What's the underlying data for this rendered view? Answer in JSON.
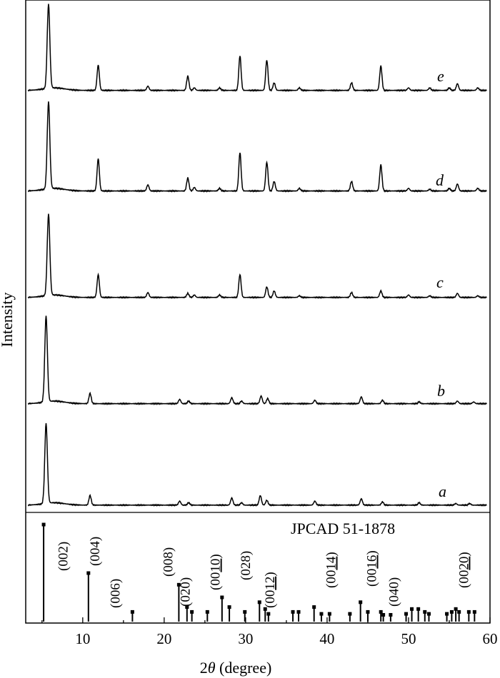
{
  "chart_data": {
    "type": "line",
    "xlabel": "2θ (degree)",
    "xlabel_parts": {
      "symbol": "2",
      "theta": "θ",
      "rest": " (degree)"
    },
    "ylabel": "Intensity",
    "xlim": [
      3,
      60
    ],
    "x_ticks": [
      10,
      20,
      30,
      40,
      50,
      60
    ],
    "y_ticks": [],
    "grid": false,
    "legend": "none",
    "series_order_bottom_to_top": [
      "a",
      "b",
      "c",
      "d",
      "e"
    ],
    "series": [
      {
        "name": "a",
        "baseline": 0.02,
        "peaks": [
          [
            5.5,
            1.0
          ],
          [
            10.9,
            0.12
          ],
          [
            21.9,
            0.05
          ],
          [
            23.0,
            0.03
          ],
          [
            28.3,
            0.09
          ],
          [
            29.5,
            0.03
          ],
          [
            31.8,
            0.12
          ],
          [
            32.6,
            0.06
          ],
          [
            38.5,
            0.05
          ],
          [
            44.2,
            0.08
          ],
          [
            46.8,
            0.04
          ],
          [
            51.3,
            0.03
          ],
          [
            55.8,
            0.02
          ],
          [
            57.5,
            0.02
          ]
        ]
      },
      {
        "name": "b",
        "baseline": 0.02,
        "peaks": [
          [
            5.5,
            1.0
          ],
          [
            10.9,
            0.12
          ],
          [
            21.9,
            0.05
          ],
          [
            23.0,
            0.03
          ],
          [
            28.3,
            0.07
          ],
          [
            29.5,
            0.03
          ],
          [
            31.9,
            0.09
          ],
          [
            32.7,
            0.06
          ],
          [
            38.5,
            0.04
          ],
          [
            44.2,
            0.08
          ],
          [
            46.8,
            0.04
          ],
          [
            51.3,
            0.02
          ],
          [
            56.0,
            0.03
          ],
          [
            58.0,
            0.02
          ]
        ]
      },
      {
        "name": "c",
        "baseline": 0.02,
        "peaks": [
          [
            5.8,
            1.0
          ],
          [
            11.9,
            0.28
          ],
          [
            18.0,
            0.06
          ],
          [
            22.9,
            0.05
          ],
          [
            23.7,
            0.03
          ],
          [
            26.8,
            0.03
          ],
          [
            29.3,
            0.28
          ],
          [
            32.6,
            0.13
          ],
          [
            33.5,
            0.08
          ],
          [
            36.6,
            0.02
          ],
          [
            43.0,
            0.06
          ],
          [
            46.6,
            0.08
          ],
          [
            50.0,
            0.03
          ],
          [
            52.6,
            0.02
          ],
          [
            56.0,
            0.05
          ],
          [
            58.5,
            0.02
          ]
        ]
      },
      {
        "name": "d",
        "baseline": 0.02,
        "peaks": [
          [
            5.8,
            1.0
          ],
          [
            11.9,
            0.37
          ],
          [
            18.0,
            0.07
          ],
          [
            22.9,
            0.15
          ],
          [
            23.7,
            0.04
          ],
          [
            26.8,
            0.03
          ],
          [
            29.3,
            0.44
          ],
          [
            32.6,
            0.33
          ],
          [
            33.5,
            0.11
          ],
          [
            36.6,
            0.03
          ],
          [
            43.0,
            0.11
          ],
          [
            46.6,
            0.3
          ],
          [
            50.0,
            0.03
          ],
          [
            52.6,
            0.02
          ],
          [
            55.0,
            0.03
          ],
          [
            56.0,
            0.08
          ],
          [
            58.5,
            0.03
          ]
        ]
      },
      {
        "name": "e",
        "baseline": 0.02,
        "peaks": [
          [
            5.8,
            1.0
          ],
          [
            11.9,
            0.3
          ],
          [
            18.0,
            0.05
          ],
          [
            22.9,
            0.17
          ],
          [
            23.7,
            0.03
          ],
          [
            26.8,
            0.03
          ],
          [
            29.3,
            0.41
          ],
          [
            32.6,
            0.36
          ],
          [
            33.5,
            0.09
          ],
          [
            36.6,
            0.03
          ],
          [
            43.0,
            0.09
          ],
          [
            46.6,
            0.29
          ],
          [
            50.0,
            0.03
          ],
          [
            52.6,
            0.03
          ],
          [
            55.0,
            0.03
          ],
          [
            56.0,
            0.08
          ],
          [
            58.5,
            0.03
          ]
        ]
      }
    ],
    "reference": {
      "name": "JPCAD 51-1878",
      "lines": [
        [
          5.2,
          1.0
        ],
        [
          10.7,
          0.5
        ],
        [
          16.1,
          0.1
        ],
        [
          21.8,
          0.38
        ],
        [
          22.8,
          0.15
        ],
        [
          23.4,
          0.1
        ],
        [
          25.3,
          0.1
        ],
        [
          27.1,
          0.25
        ],
        [
          28.0,
          0.15
        ],
        [
          29.9,
          0.1
        ],
        [
          31.7,
          0.2
        ],
        [
          32.4,
          0.13
        ],
        [
          32.8,
          0.08
        ],
        [
          35.8,
          0.1
        ],
        [
          36.5,
          0.1
        ],
        [
          38.4,
          0.15
        ],
        [
          39.3,
          0.08
        ],
        [
          40.3,
          0.08
        ],
        [
          42.8,
          0.08
        ],
        [
          44.1,
          0.2
        ],
        [
          45.0,
          0.1
        ],
        [
          46.6,
          0.1
        ],
        [
          46.9,
          0.07
        ],
        [
          47.8,
          0.07
        ],
        [
          49.7,
          0.08
        ],
        [
          50.4,
          0.13
        ],
        [
          51.2,
          0.13
        ],
        [
          52.0,
          0.1
        ],
        [
          52.5,
          0.08
        ],
        [
          54.7,
          0.08
        ],
        [
          55.3,
          0.1
        ],
        [
          55.8,
          0.13
        ],
        [
          56.2,
          0.1
        ],
        [
          57.4,
          0.1
        ],
        [
          58.1,
          0.1
        ]
      ],
      "hkl_labels": [
        {
          "text": "(002)",
          "x": 7.6,
          "underline": ""
        },
        {
          "text": "(004)",
          "x": 11.5,
          "underline": ""
        },
        {
          "text": "(006)",
          "x": 14.0,
          "underline": ""
        },
        {
          "text": "(008)",
          "x": 20.5,
          "underline": ""
        },
        {
          "text": "(020)",
          "x": 22.6,
          "underline": ""
        },
        {
          "text": "(0010)",
          "x": 26.3,
          "underline": "10"
        },
        {
          "text": "(028)",
          "x": 30.0,
          "underline": ""
        },
        {
          "text": "(0012)",
          "x": 33.0,
          "underline": "12"
        },
        {
          "text": "(0014)",
          "x": 40.5,
          "underline": "14"
        },
        {
          "text": "(0016)",
          "x": 45.5,
          "underline": "16"
        },
        {
          "text": "(040)",
          "x": 48.2,
          "underline": ""
        },
        {
          "text": "(0020)",
          "x": 56.8,
          "underline": "20"
        }
      ]
    }
  }
}
